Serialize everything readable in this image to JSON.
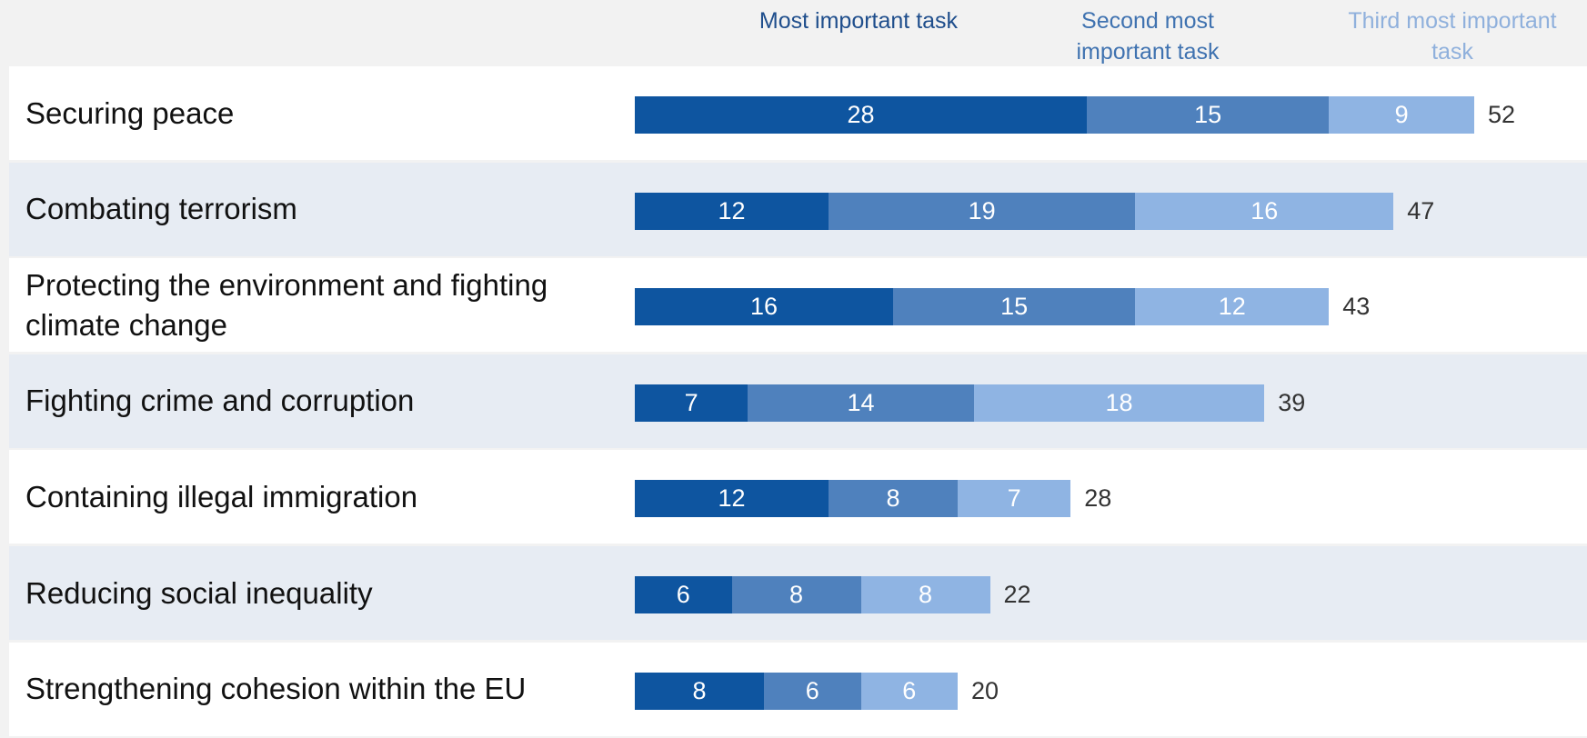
{
  "colors": {
    "most": "#0e55a0",
    "second": "#4f81bd",
    "third": "#8fb4e3",
    "legend_most": "#1f4e8c",
    "legend_second": "#3f72b0",
    "legend_third": "#8fb0dc"
  },
  "chart_data": {
    "type": "bar",
    "orientation": "horizontal",
    "stacked": true,
    "legend_position": "top",
    "categories": [
      "Securing peace",
      "Combating terrorism",
      "Protecting the environment and fighting climate change",
      "Fighting crime and corruption",
      "Containing illegal immigration",
      "Reducing social inequality",
      "Strengthening cohesion within the EU"
    ],
    "series": [
      {
        "name": "Most important task",
        "values": [
          28,
          12,
          16,
          7,
          12,
          6,
          8
        ]
      },
      {
        "name": "Second most important task",
        "values": [
          15,
          19,
          15,
          14,
          8,
          8,
          6
        ]
      },
      {
        "name": "Third most important task",
        "values": [
          9,
          16,
          12,
          18,
          7,
          8,
          6
        ]
      }
    ],
    "totals": [
      52,
      47,
      43,
      39,
      28,
      22,
      20
    ],
    "xlim": [
      0,
      52
    ]
  }
}
